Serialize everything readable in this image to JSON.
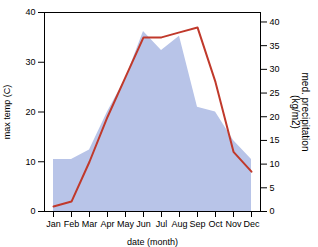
{
  "chart_data": {
    "type": "line",
    "xlabel": "date (month)",
    "ylabel": "max temp (C)",
    "y2label": "med. precipitation\n(kg/m2)",
    "categories": [
      "Jan",
      "Feb",
      "Mar",
      "Apr",
      "May",
      "Jun",
      "Jul",
      "Aug",
      "Sep",
      "Oct",
      "Nov",
      "Dec"
    ],
    "series": [
      {
        "type": "area",
        "axis": "y2",
        "color": "#b8c4e8",
        "values": [
          11,
          11,
          13,
          21,
          28,
          38,
          34,
          37,
          22,
          21,
          15,
          11
        ]
      },
      {
        "type": "line",
        "color": "#c0392b",
        "values": [
          1,
          2,
          10,
          19,
          27,
          35,
          35,
          36,
          37,
          26,
          12,
          8
        ]
      }
    ],
    "ylim": [
      0,
      40
    ],
    "yticks": [
      0,
      10,
      20,
      30,
      40
    ],
    "y2lim": [
      0,
      42
    ],
    "y2ticks": [
      0,
      5,
      10,
      15,
      20,
      25,
      30,
      35,
      40
    ]
  }
}
